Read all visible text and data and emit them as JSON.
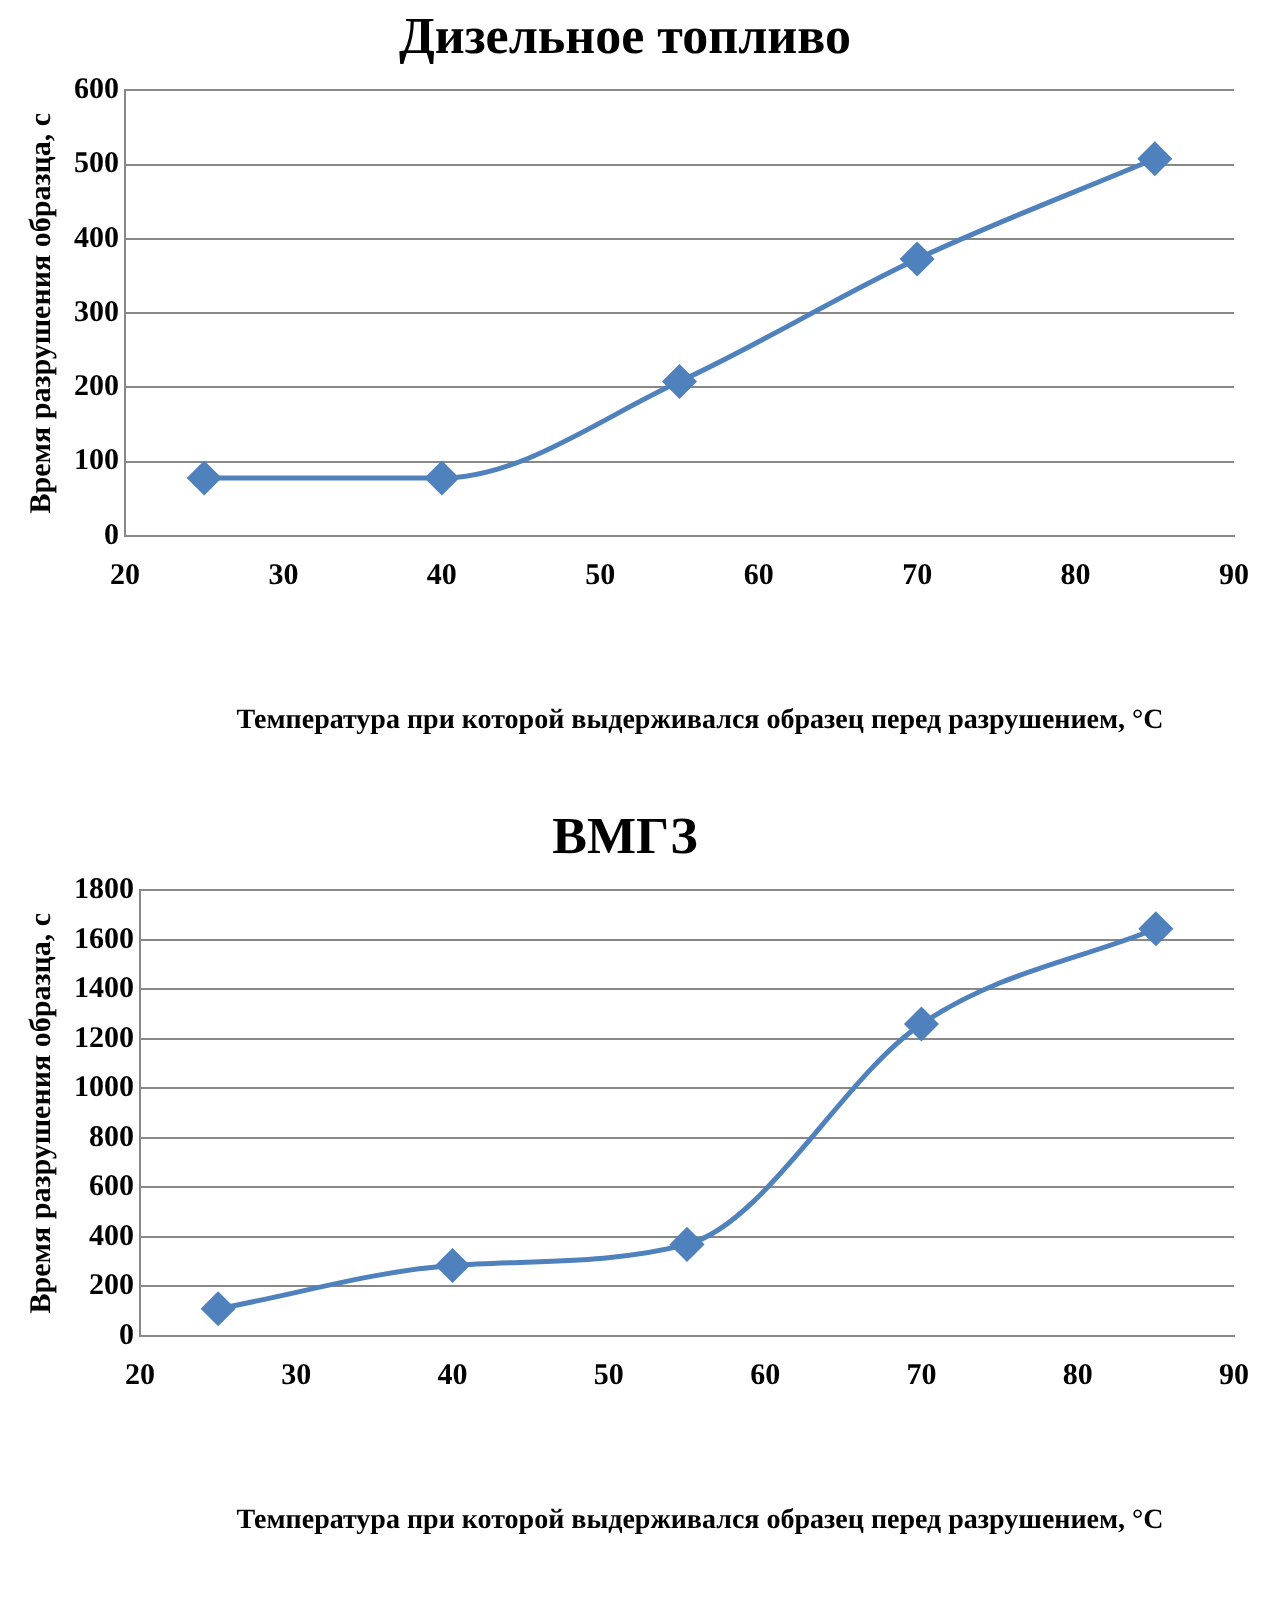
{
  "chart_data": [
    {
      "type": "line",
      "title": "Дизельное топливо",
      "xlabel": "Температура при которой выдерживался  образец перед разрушением, °C",
      "ylabel": "Время разрушения образца, с",
      "x": [
        25,
        40,
        55,
        70,
        85
      ],
      "series": [
        {
          "color": "#4f81bd",
          "values": [
            78,
            78,
            208,
            373,
            508
          ]
        }
      ],
      "xlim": [
        20,
        90
      ],
      "xticks": [
        20,
        30,
        40,
        50,
        60,
        70,
        80,
        90
      ],
      "ylim": [
        0,
        600
      ],
      "yticks": [
        0,
        100,
        200,
        300,
        400,
        500,
        600
      ],
      "grid": "y",
      "legend": false,
      "marker": "diamond",
      "line_style": "solid"
    },
    {
      "type": "line",
      "title": "ВМГЗ",
      "xlabel": "Температура при которой выдерживался  образец перед разрушением, °C",
      "ylabel": "Время разрушения образца, с",
      "x": [
        25,
        40,
        55,
        70,
        85
      ],
      "series": [
        {
          "color": "#4f81bd",
          "values": [
            110,
            285,
            370,
            1260,
            1645
          ]
        }
      ],
      "xlim": [
        20,
        90
      ],
      "xticks": [
        20,
        30,
        40,
        50,
        60,
        70,
        80,
        90
      ],
      "ylim": [
        0,
        1800
      ],
      "yticks": [
        0,
        200,
        400,
        600,
        800,
        1000,
        1200,
        1400,
        1600,
        1800
      ],
      "grid": "y",
      "legend": false,
      "marker": "diamond",
      "line_style": "solid"
    }
  ]
}
